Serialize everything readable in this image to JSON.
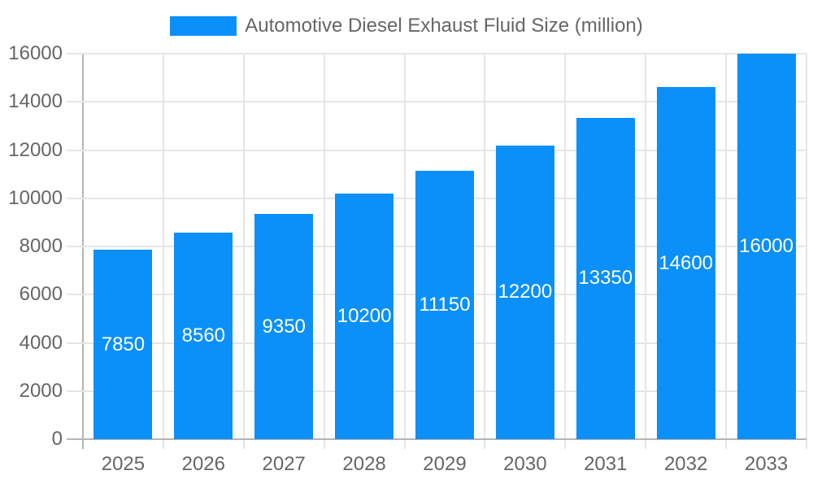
{
  "legend": {
    "label": "Automotive Diesel Exhaust Fluid Size (million)"
  },
  "colors": {
    "bar": "#0A90F8",
    "grid": "#E6E6E6",
    "axis_zero": "#B5B5B5",
    "label_text": "#666666",
    "value_text": "#FFFFFF",
    "background": "#FFFFFF"
  },
  "chart_data": {
    "type": "bar",
    "title": "Automotive Diesel Exhaust Fluid Size (million)",
    "series_name": "Automotive Diesel Exhaust Fluid Size (million)",
    "categories": [
      "2025",
      "2026",
      "2027",
      "2028",
      "2029",
      "2030",
      "2031",
      "2032",
      "2033"
    ],
    "values": [
      7850,
      8560,
      9350,
      10200,
      11150,
      12200,
      13350,
      14600,
      16000
    ],
    "xlabel": "",
    "ylabel": "",
    "ylim": [
      0,
      16000
    ],
    "yticks": [
      0,
      2000,
      4000,
      6000,
      8000,
      10000,
      12000,
      14000,
      16000
    ],
    "grid": true,
    "legend_position": "top-center",
    "value_labels": "inside-center-white"
  }
}
